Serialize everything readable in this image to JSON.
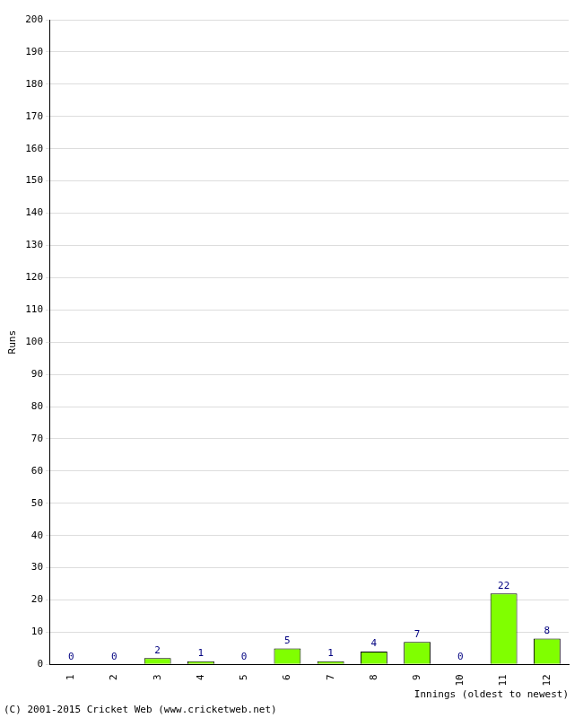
{
  "chart_data": {
    "type": "bar",
    "categories": [
      "1",
      "2",
      "3",
      "4",
      "5",
      "6",
      "7",
      "8",
      "9",
      "10",
      "11",
      "12"
    ],
    "values": [
      0,
      0,
      2,
      1,
      0,
      5,
      1,
      4,
      7,
      0,
      22,
      8
    ],
    "color": "#80ff00",
    "xlabel": "Innings (oldest to newest)",
    "ylabel": "Runs",
    "ylim": [
      0,
      200
    ],
    "yticks": [
      0,
      10,
      20,
      30,
      40,
      50,
      60,
      70,
      80,
      90,
      100,
      110,
      120,
      130,
      140,
      150,
      160,
      170,
      180,
      190,
      200
    ],
    "grid": true,
    "data_labels": true,
    "footer": "(C) 2001-2015 Cricket Web (www.cricketweb.net)"
  }
}
